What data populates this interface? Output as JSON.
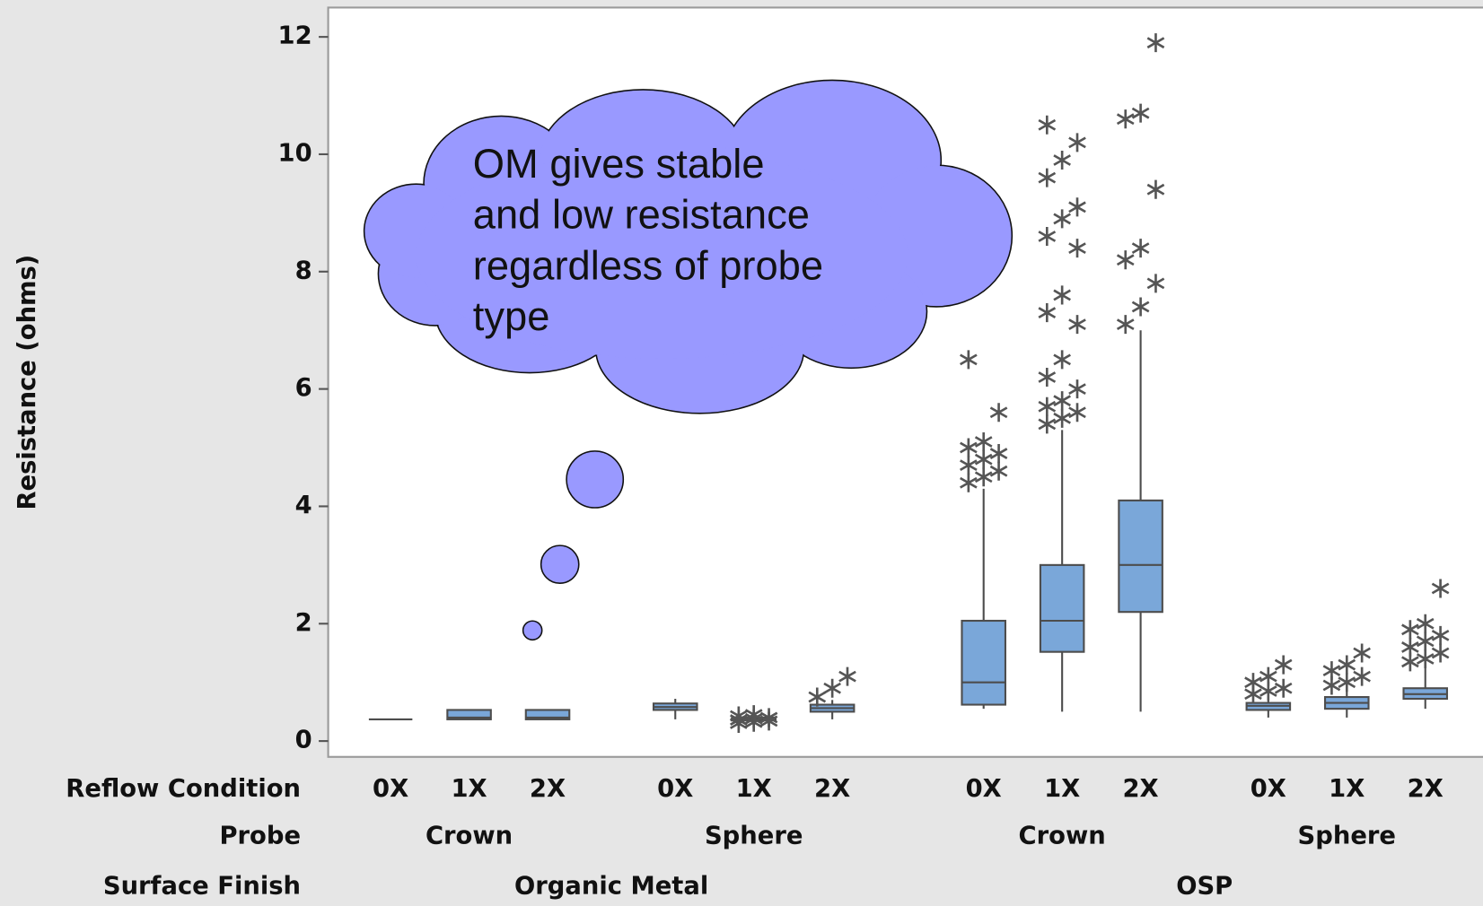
{
  "chart_data": {
    "type": "box",
    "ylabel": "Resistance (ohms)",
    "ylim": [
      -0.27,
      12.5
    ],
    "yticks": [
      0,
      2,
      4,
      6,
      8,
      10,
      12
    ],
    "row_titles": [
      "Reflow Condition",
      "Probe",
      "Surface Finish"
    ],
    "categories": [
      "0X",
      "1X",
      "2X",
      "0X",
      "1X",
      "2X",
      "0X",
      "1X",
      "2X",
      "0X",
      "1X",
      "2X"
    ],
    "probes": [
      "Crown",
      "Sphere",
      "Crown",
      "Sphere"
    ],
    "surface_finishes": [
      "Organic Metal",
      "OSP"
    ],
    "color": "#7aa7d9",
    "annotation": [
      "OM gives stable",
      "and low resistance",
      "regardless of probe",
      "type"
    ],
    "boxes": [
      {
        "min": 0.37,
        "q1": 0.37,
        "median": 0.37,
        "q3": 0.37,
        "max": 0.37,
        "outliers": []
      },
      {
        "min": 0.37,
        "q1": 0.37,
        "median": 0.4,
        "q3": 0.53,
        "max": 0.53,
        "outliers": []
      },
      {
        "min": 0.37,
        "q1": 0.37,
        "median": 0.4,
        "q3": 0.53,
        "max": 0.53,
        "outliers": []
      },
      {
        "min": 0.37,
        "q1": 0.53,
        "median": 0.58,
        "q3": 0.64,
        "max": 0.72,
        "outliers": []
      },
      {
        "min": 0.33,
        "q1": 0.35,
        "median": 0.37,
        "q3": 0.4,
        "max": 0.42,
        "outliers": [
          0.3,
          0.32,
          0.34,
          0.36,
          0.38,
          0.4,
          0.43,
          0.45
        ]
      },
      {
        "min": 0.37,
        "q1": 0.5,
        "median": 0.56,
        "q3": 0.62,
        "max": 0.7,
        "outliers": [
          0.75,
          0.9,
          1.1
        ]
      },
      {
        "min": 0.55,
        "q1": 0.62,
        "median": 1.0,
        "q3": 2.05,
        "max": 4.3,
        "outliers": [
          4.4,
          4.5,
          4.6,
          4.7,
          4.8,
          4.9,
          5.0,
          5.1,
          5.6,
          6.5
        ]
      },
      {
        "min": 0.5,
        "q1": 1.52,
        "median": 2.05,
        "q3": 3.0,
        "max": 5.3,
        "outliers": [
          5.4,
          5.5,
          5.6,
          5.7,
          5.8,
          6.0,
          6.2,
          6.5,
          7.1,
          7.3,
          7.6,
          8.4,
          8.6,
          8.9,
          9.1,
          9.6,
          9.9,
          10.2,
          10.5
        ]
      },
      {
        "min": 0.5,
        "q1": 2.2,
        "median": 3.0,
        "q3": 4.1,
        "max": 7.0,
        "outliers": [
          7.1,
          7.4,
          7.8,
          8.2,
          8.4,
          9.4,
          10.6,
          10.7,
          11.9
        ]
      },
      {
        "min": 0.4,
        "q1": 0.53,
        "median": 0.6,
        "q3": 0.65,
        "max": 0.75,
        "outliers": [
          0.8,
          0.85,
          0.9,
          1.0,
          1.1,
          1.3
        ]
      },
      {
        "min": 0.4,
        "q1": 0.55,
        "median": 0.65,
        "q3": 0.75,
        "max": 0.9,
        "outliers": [
          0.95,
          1.0,
          1.1,
          1.2,
          1.3,
          1.5
        ]
      },
      {
        "min": 0.55,
        "q1": 0.72,
        "median": 0.8,
        "q3": 0.9,
        "max": 1.3,
        "outliers": [
          1.35,
          1.4,
          1.5,
          1.6,
          1.7,
          1.8,
          1.9,
          2.0,
          2.6
        ]
      }
    ]
  }
}
